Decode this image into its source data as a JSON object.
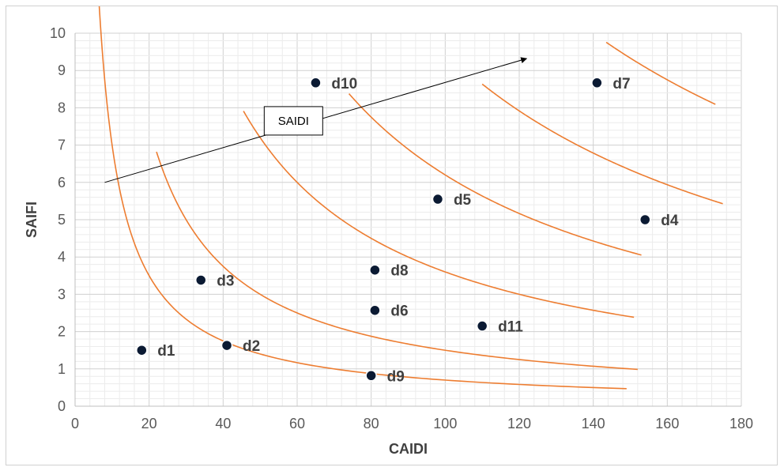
{
  "chart_data": {
    "type": "scatter",
    "xlabel": "CAIDI",
    "ylabel": "SAIFI",
    "xlim": [
      0,
      180
    ],
    "ylim": [
      0,
      10
    ],
    "xticks": [
      0,
      20,
      40,
      60,
      80,
      100,
      120,
      140,
      160,
      180
    ],
    "yticks": [
      0,
      1,
      2,
      3,
      4,
      5,
      6,
      7,
      8,
      9,
      10
    ],
    "grid": "major and minor",
    "points": [
      {
        "label": "d1",
        "x": 18,
        "y": 1.5
      },
      {
        "label": "d2",
        "x": 41,
        "y": 1.63
      },
      {
        "label": "d3",
        "x": 34,
        "y": 3.38
      },
      {
        "label": "d4",
        "x": 154,
        "y": 5.0
      },
      {
        "label": "d5",
        "x": 98,
        "y": 5.55
      },
      {
        "label": "d6",
        "x": 81,
        "y": 2.57
      },
      {
        "label": "d7",
        "x": 141,
        "y": 8.67
      },
      {
        "label": "d8",
        "x": 81,
        "y": 3.65
      },
      {
        "label": "d9",
        "x": 80,
        "y": 0.82
      },
      {
        "label": "d10",
        "x": 65,
        "y": 8.67
      },
      {
        "label": "d11",
        "x": 110,
        "y": 2.15
      }
    ],
    "iso_curves": [
      {
        "saidi": 70,
        "x_range": [
          3.9,
          149
        ]
      },
      {
        "saidi": 150,
        "x_range": [
          22,
          152
        ]
      },
      {
        "saidi": 360,
        "x_range": [
          45.5,
          151
        ]
      },
      {
        "saidi": 620,
        "x_range": [
          74,
          153
        ]
      },
      {
        "saidi": 950,
        "x_range": [
          110,
          175
        ]
      },
      {
        "saidi": 1400,
        "x_range": [
          143.5,
          173
        ]
      }
    ],
    "curve_color": "#ED7D31",
    "point_color": "#0b1a33",
    "annotation": {
      "text": "SAIDI",
      "arrow_from": [
        8,
        6.0
      ],
      "arrow_to": [
        122,
        9.32
      ],
      "box_center": [
        59,
        7.65
      ]
    }
  }
}
